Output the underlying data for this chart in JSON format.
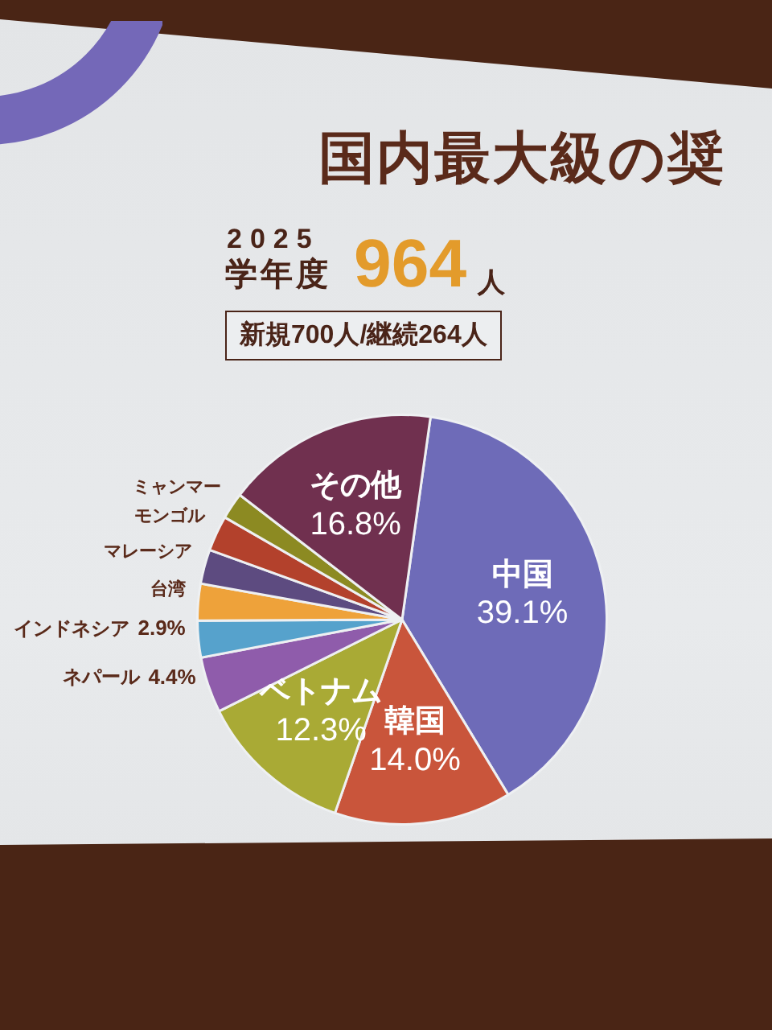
{
  "chart_data": {
    "type": "pie",
    "title": "国内最大級の奨",
    "annotations": [
      "2025",
      "学年度",
      "964",
      "人",
      "新規700人/継続264人"
    ],
    "categories": [
      "中国",
      "韓国",
      "ベトナム",
      "ネパール",
      "インドネシア",
      "台湾",
      "マレーシア",
      "モンゴル",
      "ミャンマー",
      "その他"
    ],
    "values": [
      39.1,
      14.0,
      12.3,
      4.4,
      2.9,
      2.9,
      2.7,
      2.8,
      2.1,
      16.8
    ],
    "colors": [
      "#6e6bb8",
      "#c9553b",
      "#a9aa35",
      "#8f5cab",
      "#56a2cc",
      "#eea23a",
      "#5d4b80",
      "#b3412c",
      "#8c8a22",
      "#70304f"
    ],
    "value_labels": [
      "39.1%",
      "14.0%",
      "12.3%",
      "4.4%",
      "2.9%",
      null,
      null,
      null,
      null,
      "16.8%"
    ]
  }
}
